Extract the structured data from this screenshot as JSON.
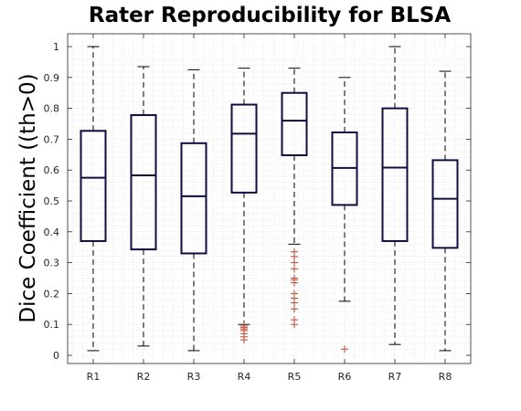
{
  "chart_data": {
    "type": "box",
    "title": "Rater Reproducibility for BLSA",
    "xlabel": "",
    "ylabel": "Dice Coefficient ((th>0)",
    "ylim": [
      -0.03,
      1.04
    ],
    "yticks": [
      "0",
      "0.1",
      "0.2",
      "0.3",
      "0.4",
      "0.5",
      "0.6",
      "0.7",
      "0.8",
      "0.9",
      "1"
    ],
    "grid": "minor dotted",
    "categories": [
      "R1",
      "R2",
      "R3",
      "R4",
      "R5",
      "R6",
      "R7",
      "R8"
    ],
    "colors": {
      "box": "#0d0d40",
      "whisker": "#000000",
      "outlier": "#c0462b",
      "grid": "#d9d9d9",
      "axes": "#262626"
    },
    "boxes": [
      {
        "name": "R1",
        "min": 0.015,
        "q1": 0.37,
        "median": 0.575,
        "q3": 0.727,
        "max": 1.0,
        "outliers": []
      },
      {
        "name": "R2",
        "min": 0.03,
        "q1": 0.343,
        "median": 0.583,
        "q3": 0.778,
        "max": 0.935,
        "outliers": []
      },
      {
        "name": "R3",
        "min": 0.015,
        "q1": 0.33,
        "median": 0.515,
        "q3": 0.687,
        "max": 0.925,
        "outliers": []
      },
      {
        "name": "R4",
        "min": 0.1,
        "q1": 0.527,
        "median": 0.718,
        "q3": 0.812,
        "max": 0.93,
        "outliers": [
          0.05,
          0.06,
          0.07,
          0.08,
          0.085,
          0.09,
          0.095
        ]
      },
      {
        "name": "R5",
        "min": 0.36,
        "q1": 0.648,
        "median": 0.76,
        "q3": 0.85,
        "max": 0.93,
        "outliers": [
          0.1,
          0.115,
          0.15,
          0.17,
          0.185,
          0.2,
          0.235,
          0.245,
          0.25,
          0.28,
          0.3,
          0.32,
          0.335
        ]
      },
      {
        "name": "R6",
        "min": 0.175,
        "q1": 0.487,
        "median": 0.607,
        "q3": 0.722,
        "max": 0.9,
        "outliers": [
          0.02
        ]
      },
      {
        "name": "R7",
        "min": 0.035,
        "q1": 0.37,
        "median": 0.608,
        "q3": 0.8,
        "max": 1.0,
        "outliers": []
      },
      {
        "name": "R8",
        "min": 0.015,
        "q1": 0.348,
        "median": 0.507,
        "q3": 0.632,
        "max": 0.92,
        "outliers": []
      }
    ]
  }
}
